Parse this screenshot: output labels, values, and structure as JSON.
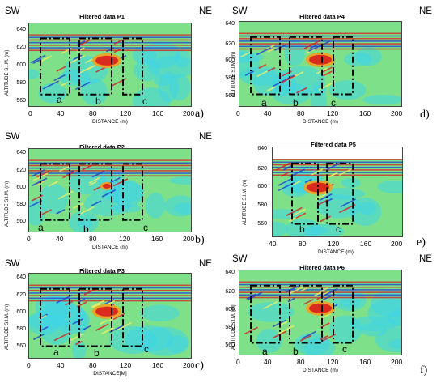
{
  "panels": [
    {
      "title": "Filtered data P1",
      "left": "SW",
      "right": "NE",
      "label": "a)",
      "xlabel": "DISTANCE (m)",
      "ylabel": "ALTITUDE S.l.M. (m)",
      "xticks": [
        "0",
        "40",
        "80",
        "120",
        "160",
        "200"
      ],
      "yticks": [
        "640",
        "620",
        "600",
        "580",
        "560"
      ],
      "segments": [
        "a",
        "b",
        "c"
      ]
    },
    {
      "title": "Filtered data P4",
      "left": "SW",
      "right": "NE",
      "label": "d)",
      "xlabel": "DISTANCE (m)",
      "ylabel": "ALTITUDE S.l.M. (m)",
      "xticks": [
        "0",
        "40",
        "80",
        "120",
        "160",
        "200"
      ],
      "yticks": [
        "640",
        "620",
        "600",
        "580",
        "560"
      ],
      "segments": [
        "a",
        "b",
        "c"
      ]
    },
    {
      "title": "Filtered data P2",
      "left": "SW",
      "right": "NE",
      "label": "b)",
      "xlabel": "DISTANCE (m)",
      "ylabel": "ALTITUDE S.l.M. (m)",
      "xticks": [
        "0",
        "40",
        "80",
        "120",
        "160",
        "200"
      ],
      "yticks": [
        "640",
        "620",
        "600",
        "580",
        "560"
      ],
      "segments": [
        "a",
        "b",
        "c"
      ]
    },
    {
      "title": "Filtered data P5",
      "left": "",
      "right": "",
      "label": "e)",
      "xlabel": "DISTANCE (m)",
      "ylabel": "ALTITUDE S.l.M. (m)",
      "xticks": [
        "40",
        "80",
        "120",
        "160",
        "200"
      ],
      "yticks": [
        "640",
        "620",
        "600",
        "580",
        "560"
      ],
      "segments": [
        "b",
        "c"
      ]
    },
    {
      "title": "Filtered data P3",
      "left": "SW",
      "right": "NE",
      "label": "c)",
      "xlabel": "DISTANCE[M]",
      "ylabel": "ALTITUDE S.l.M. (m)",
      "xticks": [
        "0",
        "40",
        "80",
        "120",
        "160",
        "200"
      ],
      "yticks": [
        "640",
        "620",
        "600",
        "580",
        "560"
      ],
      "segments": [
        "a",
        "b",
        "c"
      ]
    },
    {
      "title": "Filtered data P6",
      "left": "SW",
      "right": "NE",
      "label": "f)",
      "xlabel": "DISTANCE (m)",
      "ylabel": "ALTITUDE S.l.M. [M]",
      "xticks": [
        "0",
        "40",
        "80",
        "120",
        "160",
        "200"
      ],
      "yticks": [
        "640",
        "620",
        "600",
        "580",
        "560"
      ],
      "segments": [
        "a",
        "b",
        "c"
      ]
    }
  ],
  "colors": {
    "background": "#7fe08a",
    "cyan": "#3fd6e6",
    "blue": "#1c3fd0",
    "yellow": "#f2f060",
    "red": "#d81e1e",
    "orange": "#f3a01e"
  }
}
